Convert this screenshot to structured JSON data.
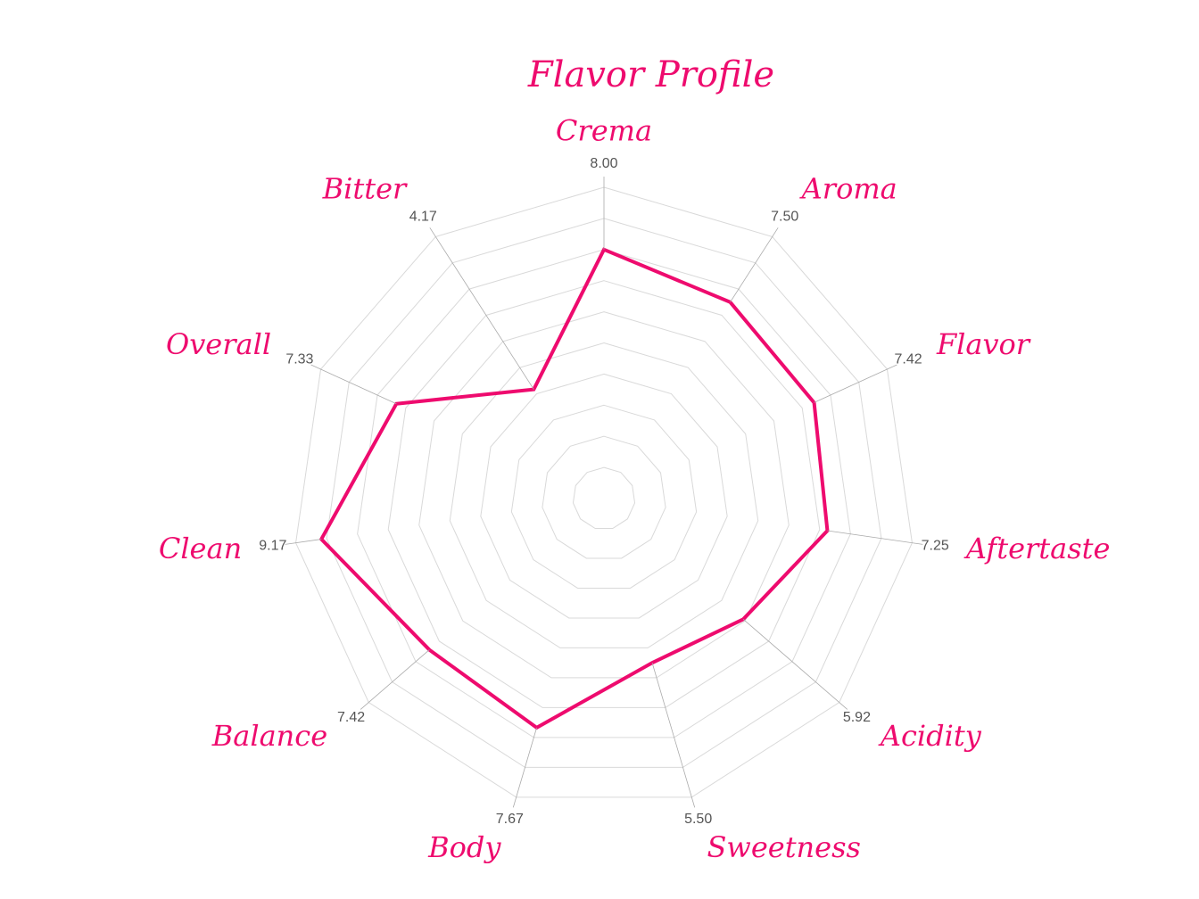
{
  "chart_data": {
    "type": "radar",
    "title": "Flavor Profile",
    "categories": [
      "Crema",
      "Aroma",
      "Flavor",
      "Aftertaste",
      "Acidity",
      "Sweetness",
      "Body",
      "Balance",
      "Clean",
      "Overall",
      "Bitter"
    ],
    "series": [
      {
        "name": "Flavor Profile",
        "color": "#ee0b6e",
        "values": [
          8,
          7.5,
          7.42,
          7.25,
          5.92,
          5.5,
          7.67,
          7.42,
          9.17,
          7.33,
          4.17
        ],
        "value_labels": [
          "8.00",
          "7.50",
          "7.42",
          "7.25",
          "5.92",
          "5.50",
          "7.67",
          "7.42",
          "9.17",
          "7.33",
          "4.17"
        ]
      }
    ],
    "ylim": [
      0,
      10
    ],
    "yticks": [
      1,
      2,
      3,
      4,
      5,
      6,
      7,
      8,
      9,
      10
    ],
    "grid": true
  }
}
